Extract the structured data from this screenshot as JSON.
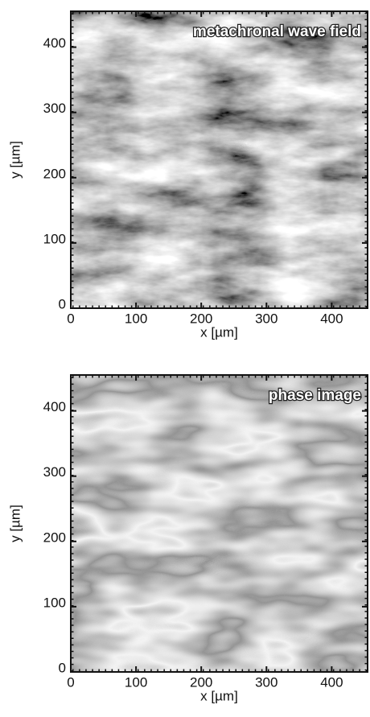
{
  "chart_data": [
    {
      "type": "image",
      "title": "metachronal wave field",
      "x_label": "x [µm]",
      "y_label": "y [µm]",
      "xlim": [
        0,
        455
      ],
      "ylim": [
        0,
        455
      ],
      "xticks": [
        0,
        100,
        200,
        300,
        400
      ],
      "yticks": [
        0,
        100,
        200,
        300,
        400
      ]
    },
    {
      "type": "image",
      "title": "phase image",
      "x_label": "x [µm]",
      "y_label": "y [µm]",
      "xlim": [
        0,
        455
      ],
      "ylim": [
        0,
        455
      ],
      "xticks": [
        0,
        100,
        200,
        300,
        400
      ],
      "yticks": [
        0,
        100,
        200,
        300,
        400
      ]
    }
  ]
}
